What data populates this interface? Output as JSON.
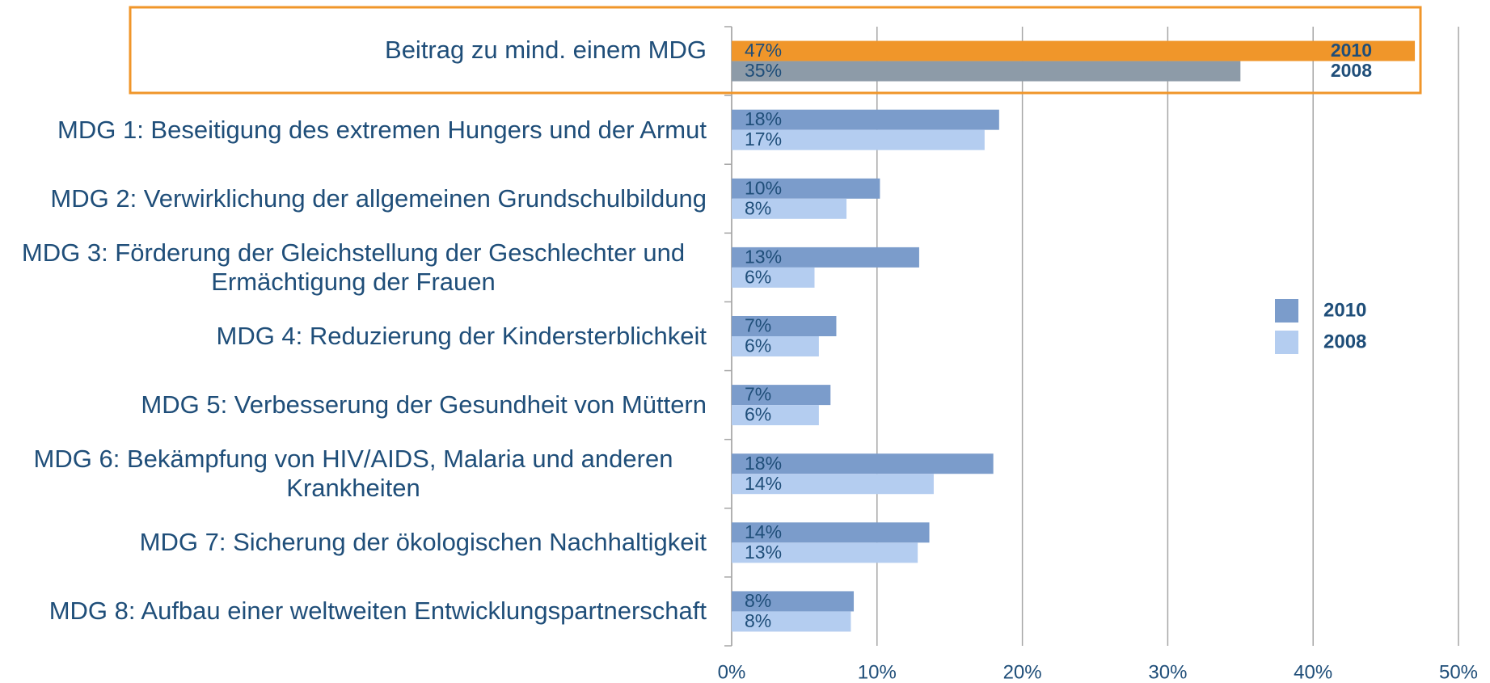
{
  "chart_data": {
    "type": "bar",
    "orientation": "horizontal",
    "categories": [
      "Beitrag zu mind. einem MDG",
      "MDG 1: Beseitigung des extremen Hungers und der Armut",
      "MDG 2: Verwirklichung der allgemeinen Grundschulbildung",
      "MDG 3: Förderung der Gleichstellung der Geschlechter und Ermächtigung der Frauen",
      "MDG 4: Reduzierung der Kindersterblichkeit",
      "MDG 5: Verbesserung der Gesundheit von Müttern",
      "MDG 6: Bekämpfung von HIV/AIDS, Malaria und anderen Krankheiten",
      "MDG 7: Sicherung der ökologischen Nachhaltigkeit",
      "MDG 8: Aufbau einer weltweiten Entwicklungspartnerschaft"
    ],
    "series": [
      {
        "name": "2010",
        "color": "#7b9ccb",
        "colors": [
          "#f0962a",
          "#7b9ccb",
          "#7b9ccb",
          "#7b9ccb",
          "#7b9ccb",
          "#7b9ccb",
          "#7b9ccb",
          "#7b9ccb",
          "#7b9ccb"
        ],
        "values": [
          47,
          18.4,
          10.2,
          12.9,
          7.2,
          6.8,
          18.0,
          13.6,
          8.4
        ],
        "value_labels": [
          "47%",
          "18%",
          "10%",
          "13%",
          "7%",
          "7%",
          "18%",
          "14%",
          "8%"
        ]
      },
      {
        "name": "2008",
        "color": "#b4cdf0",
        "colors": [
          "#8d9ba8",
          "#b4cdf0",
          "#b4cdf0",
          "#b4cdf0",
          "#b4cdf0",
          "#b4cdf0",
          "#b4cdf0",
          "#b4cdf0",
          "#b4cdf0"
        ],
        "values": [
          35,
          17.4,
          7.9,
          5.7,
          6.0,
          6.0,
          13.9,
          12.8,
          8.2
        ],
        "value_labels": [
          "35%",
          "17%",
          "8%",
          "6%",
          "6%",
          "6%",
          "14%",
          "13%",
          "8%"
        ]
      }
    ],
    "highlight_color": "#f0962a",
    "xlim": [
      0,
      50
    ],
    "xticks": [
      {
        "value": 0,
        "label": "0%"
      },
      {
        "value": 10,
        "label": "10%"
      },
      {
        "value": 20,
        "label": "20%"
      },
      {
        "value": 30,
        "label": "30%"
      },
      {
        "value": 40,
        "label": "40%"
      },
      {
        "value": 50,
        "label": "50%"
      }
    ],
    "grid": true,
    "legend": "right"
  }
}
